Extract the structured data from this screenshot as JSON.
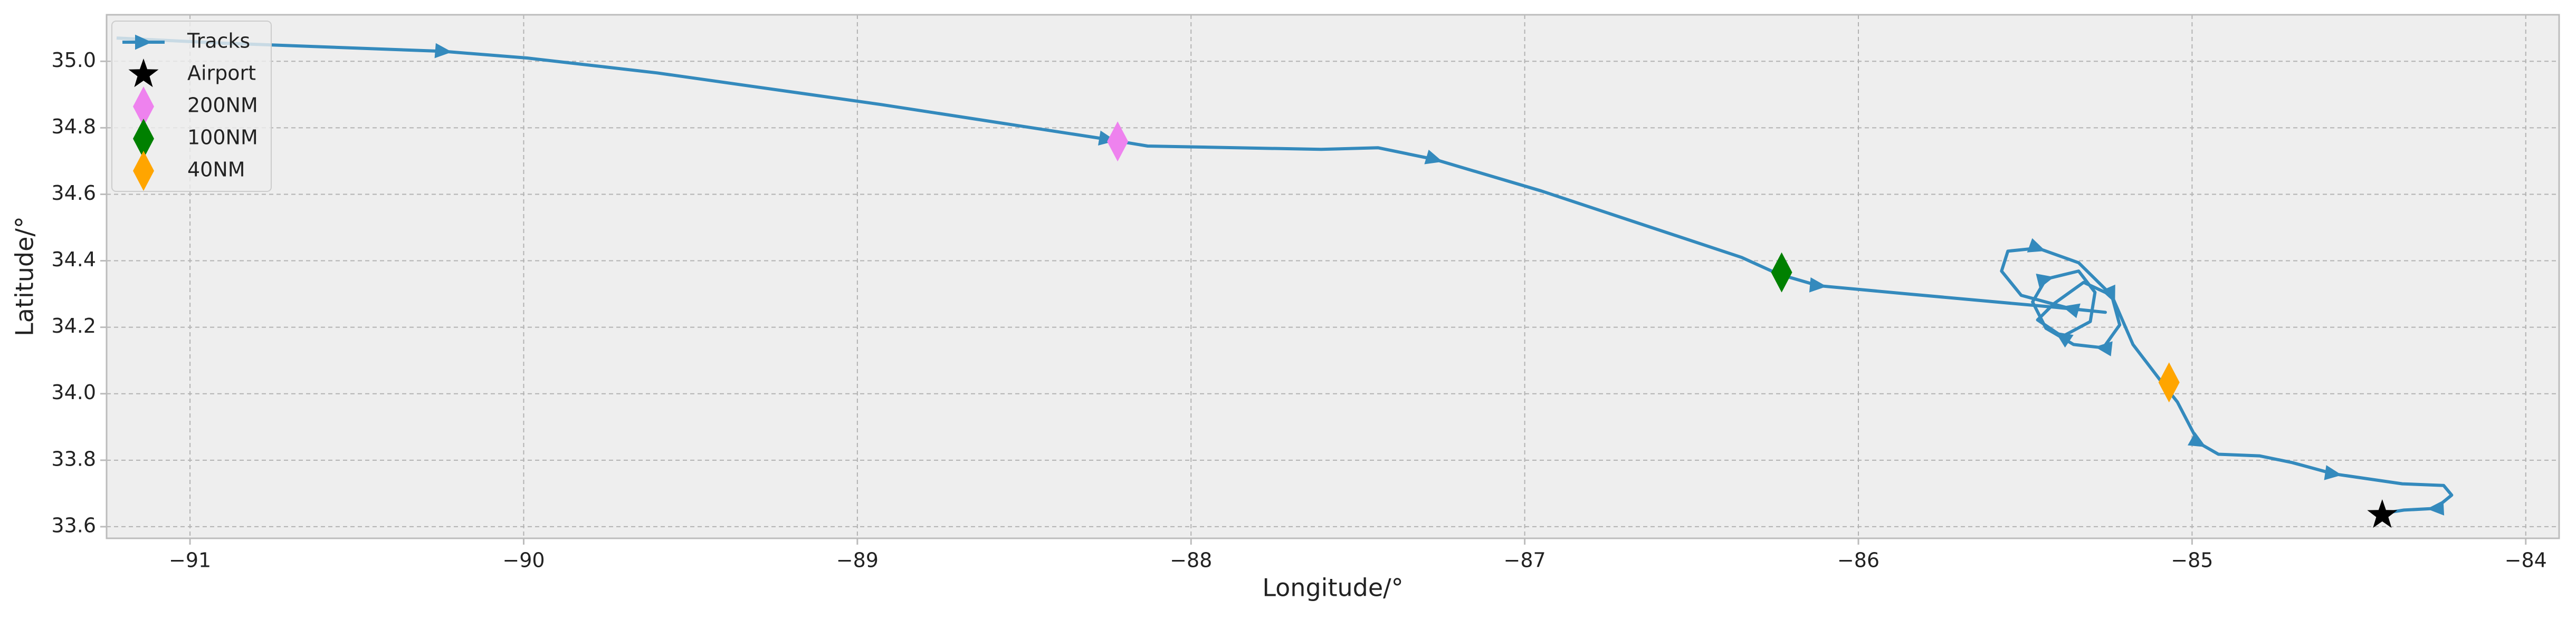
{
  "chart_data": {
    "type": "line",
    "xlabel": "Longitude/°",
    "ylabel": "Latitude/°",
    "xlim": [
      -91.25,
      -83.9
    ],
    "ylim": [
      33.565,
      35.14
    ],
    "xticks": [
      {
        "value": -91,
        "label": "−91"
      },
      {
        "value": -90,
        "label": "−90"
      },
      {
        "value": -89,
        "label": "−89"
      },
      {
        "value": -88,
        "label": "−88"
      },
      {
        "value": -87,
        "label": "−87"
      },
      {
        "value": -86,
        "label": "−86"
      },
      {
        "value": -85,
        "label": "−85"
      },
      {
        "value": -84,
        "label": "−84"
      }
    ],
    "yticks": [
      33.6,
      33.8,
      {
        "value": 34.0,
        "label": "34.0"
      },
      34.2,
      34.4,
      34.6,
      34.8,
      {
        "value": 35.0,
        "label": "35.0"
      }
    ],
    "grid": true,
    "legend": "upper left",
    "series": [
      {
        "name": "Tracks",
        "color": "#348abd",
        "marker": "arrow",
        "x": [
          -91.22,
          -90.91,
          -90.24,
          -89.99,
          -89.6,
          -88.93,
          -88.25,
          -88.13,
          -87.61,
          -87.44,
          -87.27,
          -86.95,
          -86.35,
          -86.24,
          -86.12,
          -85.85,
          -85.41,
          -85.26,
          -85.365,
          -85.512,
          -85.571,
          -85.552,
          -85.463,
          -85.34,
          -85.241,
          -85.217,
          -85.266,
          -85.355,
          -85.438,
          -85.478,
          -85.438,
          -85.34,
          -85.291,
          -85.305,
          -85.389,
          -85.463,
          -85.414,
          -85.325,
          -85.241,
          -85.177,
          -85.094,
          -85.044,
          -84.98,
          -84.921,
          -84.798,
          -84.7,
          -84.576,
          -84.37,
          -84.246,
          -84.222,
          -84.271,
          -84.365,
          -84.429
        ],
        "values": [
          35.07,
          35.055,
          35.03,
          35.01,
          34.965,
          34.87,
          34.765,
          34.745,
          34.735,
          34.74,
          34.705,
          34.61,
          34.41,
          34.36,
          34.325,
          34.3,
          34.26,
          34.245,
          34.256,
          34.296,
          34.369,
          34.429,
          34.438,
          34.394,
          34.296,
          34.207,
          34.138,
          34.148,
          34.197,
          34.276,
          34.345,
          34.369,
          34.305,
          34.217,
          34.172,
          34.222,
          34.271,
          34.335,
          34.296,
          34.148,
          34.039,
          33.975,
          33.852,
          33.818,
          33.813,
          33.793,
          33.759,
          33.729,
          33.724,
          33.695,
          33.655,
          33.65,
          33.64
        ]
      },
      {
        "name": "Airport",
        "color": "#000000",
        "marker": "star",
        "x": [
          -84.43
        ],
        "values": [
          33.635
        ]
      },
      {
        "name": "200NM",
        "color": "#ee82ee",
        "marker": "diamond",
        "x": [
          -88.22
        ],
        "values": [
          34.759
        ]
      },
      {
        "name": "100NM",
        "color": "#008000",
        "marker": "diamond",
        "x": [
          -86.23
        ],
        "values": [
          34.365
        ]
      },
      {
        "name": "40NM",
        "color": "#ffa500",
        "marker": "diamond",
        "x": [
          -85.069
        ],
        "values": [
          34.034
        ]
      }
    ]
  }
}
